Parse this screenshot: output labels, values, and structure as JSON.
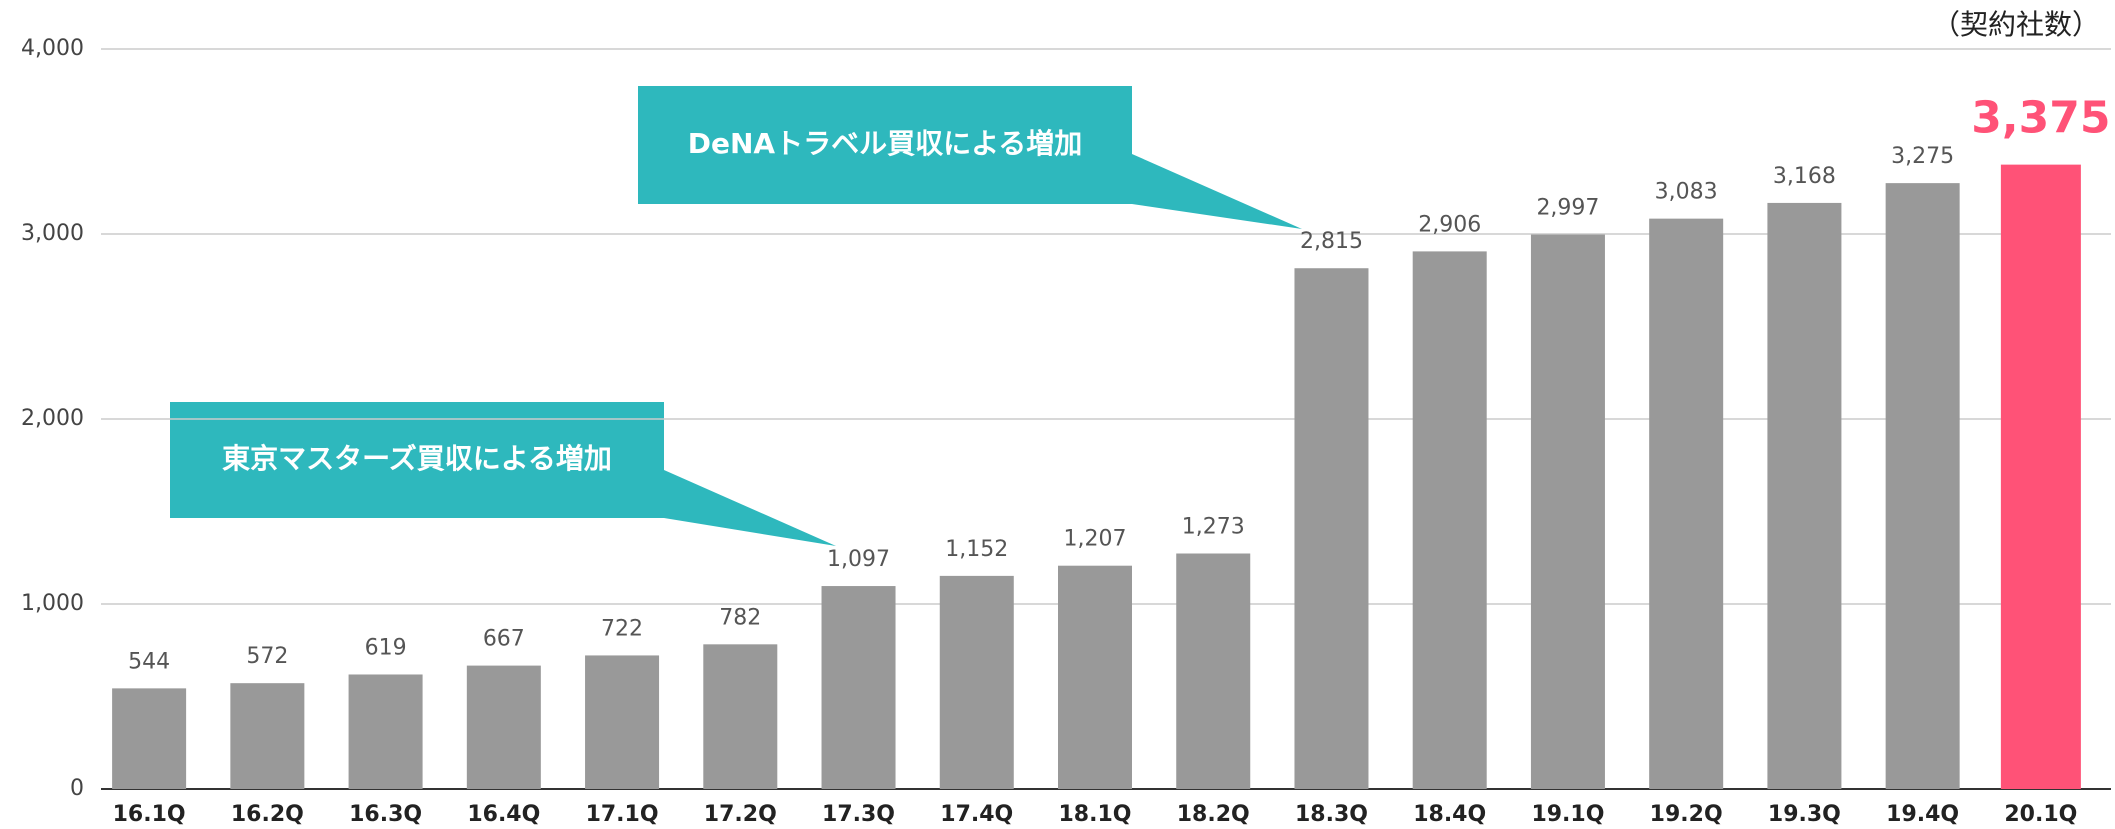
{
  "chart_data": {
    "type": "bar",
    "unit_label": "（契約社数）",
    "categories": [
      "16.1Q",
      "16.2Q",
      "16.3Q",
      "16.4Q",
      "17.1Q",
      "17.2Q",
      "17.3Q",
      "17.4Q",
      "18.1Q",
      "18.2Q",
      "18.3Q",
      "18.4Q",
      "19.1Q",
      "19.2Q",
      "19.3Q",
      "19.4Q",
      "20.1Q"
    ],
    "values": [
      544,
      572,
      619,
      667,
      722,
      782,
      1097,
      1152,
      1207,
      1273,
      2815,
      2906,
      2997,
      3083,
      3168,
      3275,
      3375
    ],
    "value_labels": [
      "544",
      "572",
      "619",
      "667",
      "722",
      "782",
      "1,097",
      "1,152",
      "1,207",
      "1,273",
      "2,815",
      "2,906",
      "2,997",
      "3,083",
      "3,168",
      "3,275",
      "3,375"
    ],
    "colors": [
      "#999999",
      "#999999",
      "#999999",
      "#999999",
      "#999999",
      "#999999",
      "#999999",
      "#999999",
      "#999999",
      "#999999",
      "#999999",
      "#999999",
      "#999999",
      "#999999",
      "#999999",
      "#999999",
      "#ff5277"
    ],
    "ylim": [
      0,
      4000
    ],
    "yticks": [
      0,
      {
        "value": 1000,
        "label": "1,000"
      },
      {
        "value": 2000,
        "label": "2,000"
      },
      {
        "value": 3000,
        "label": "3,000"
      },
      {
        "value": 4000,
        "label": "4,000"
      }
    ],
    "grid": true,
    "annotations": [
      "東京マスターズ買収による増加",
      "DeNAトラベル買収による増加"
    ]
  }
}
